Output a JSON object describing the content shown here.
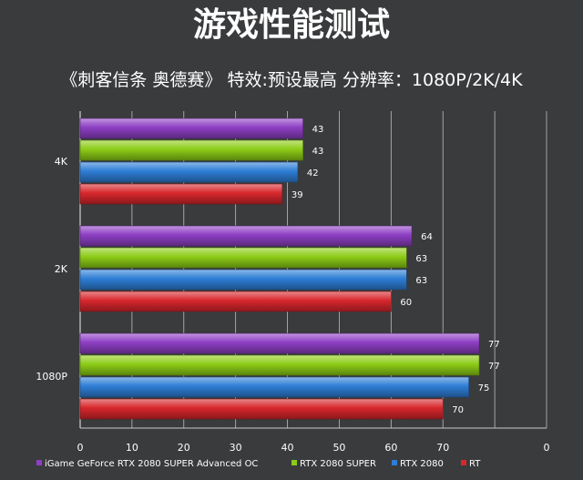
{
  "title": "游戏性能测试",
  "subtitle": "《刺客信条 奥德赛》  特效:预设最高  分辨率：1080P/2K/4K",
  "chart_data": {
    "type": "bar",
    "orientation": "horizontal",
    "categories": [
      "4K",
      "2K",
      "1080P"
    ],
    "series": [
      {
        "name": "iGame GeForce RTX 2080 SUPER Advanced OC",
        "color": "#8e3fc4",
        "values": [
          43,
          64,
          77
        ]
      },
      {
        "name": "RTX 2080 SUPER",
        "color": "#8ccc16",
        "values": [
          43,
          63,
          77
        ]
      },
      {
        "name": "RTX 2080",
        "color": "#2e7ed6",
        "values": [
          42,
          63,
          75
        ]
      },
      {
        "name": "RT",
        "color": "#d7272c",
        "values": [
          39,
          60,
          70
        ]
      }
    ],
    "xlim": [
      0,
      90
    ],
    "xticks": [
      "0",
      "10",
      "20",
      "30",
      "40",
      "50",
      "60",
      "70",
      "",
      "0"
    ],
    "grid": true,
    "legend_position": "bottom",
    "data_labels": true
  }
}
